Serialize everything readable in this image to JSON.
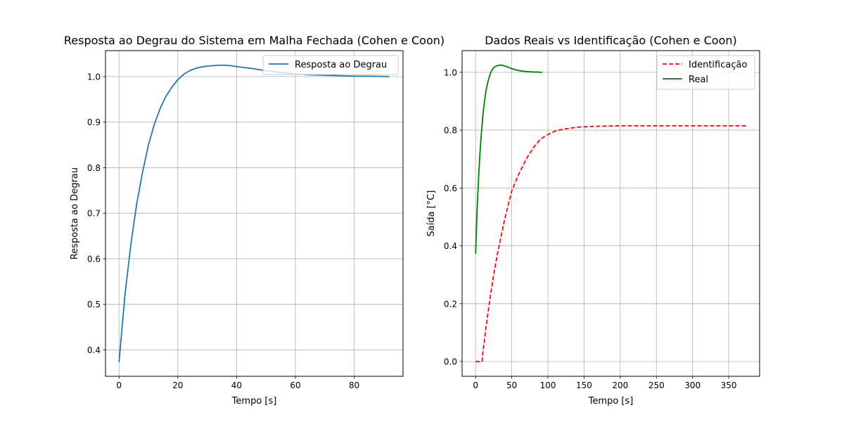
{
  "chart_data": [
    {
      "type": "line",
      "title": "Resposta ao Degrau do Sistema em Malha Fechada (Cohen e Coon)",
      "xlabel": "Tempo [s]",
      "ylabel": "Resposta ao Degrau",
      "xlim": [
        -4.6,
        96.6
      ],
      "ylim": [
        0.342,
        1.057
      ],
      "xticks": [
        0,
        20,
        40,
        60,
        80
      ],
      "xtick_labels": [
        "0",
        "20",
        "40",
        "60",
        "80"
      ],
      "yticks": [
        0.4,
        0.5,
        0.6,
        0.7,
        0.8,
        0.9,
        1.0
      ],
      "ytick_labels": [
        "0.4",
        "0.5",
        "0.6",
        "0.7",
        "0.8",
        "0.9",
        "1.0"
      ],
      "grid": true,
      "legend_position": "top-right",
      "series": [
        {
          "name": "Resposta ao Degrau",
          "color": "#1f77b4",
          "style": "solid",
          "x": [
            0,
            2,
            4,
            6,
            8,
            10,
            12,
            14,
            16,
            18,
            20,
            22,
            24,
            26,
            28,
            30,
            32,
            34,
            36,
            38,
            40,
            45,
            50,
            55,
            60,
            65,
            70,
            75,
            80,
            85,
            92
          ],
          "y": [
            0.373,
            0.52,
            0.63,
            0.72,
            0.79,
            0.85,
            0.895,
            0.93,
            0.957,
            0.977,
            0.993,
            1.005,
            1.013,
            1.018,
            1.021,
            1.023,
            1.024,
            1.025,
            1.025,
            1.024,
            1.022,
            1.018,
            1.013,
            1.009,
            1.006,
            1.004,
            1.003,
            1.002,
            1.001,
            1.001,
            1.0
          ]
        }
      ]
    },
    {
      "type": "line",
      "title": "Dados Reais vs Identificação (Cohen e Coon)",
      "xlabel": "Tempo [s]",
      "ylabel": "Saída [°C]",
      "xlim": [
        -18.7,
        392.7
      ],
      "ylim": [
        -0.051,
        1.075
      ],
      "xticks": [
        0,
        50,
        100,
        150,
        200,
        250,
        300,
        350
      ],
      "xtick_labels": [
        "0",
        "50",
        "100",
        "150",
        "200",
        "250",
        "300",
        "350"
      ],
      "yticks": [
        0.0,
        0.2,
        0.4,
        0.6,
        0.8,
        1.0
      ],
      "ytick_labels": [
        "0.0",
        "0.2",
        "0.4",
        "0.6",
        "0.8",
        "1.0"
      ],
      "grid": true,
      "legend_position": "top-right",
      "series": [
        {
          "name": "Identificação",
          "color": "#ff0000",
          "style": "dashed",
          "x": [
            0,
            5,
            9,
            10,
            15,
            20,
            25,
            30,
            35,
            40,
            45,
            50,
            60,
            70,
            80,
            90,
            100,
            110,
            120,
            140,
            160,
            180,
            200,
            250,
            300,
            350,
            375
          ],
          "y": [
            0.0,
            0.0,
            0.0,
            0.03,
            0.13,
            0.22,
            0.3,
            0.37,
            0.43,
            0.49,
            0.54,
            0.59,
            0.65,
            0.7,
            0.74,
            0.77,
            0.785,
            0.797,
            0.803,
            0.81,
            0.813,
            0.814,
            0.815,
            0.815,
            0.815,
            0.815,
            0.815
          ]
        },
        {
          "name": "Real",
          "color": "#008000",
          "style": "solid",
          "x": [
            0,
            2,
            4,
            6,
            8,
            10,
            12,
            14,
            16,
            18,
            20,
            22,
            24,
            26,
            28,
            30,
            32,
            34,
            36,
            38,
            40,
            45,
            50,
            55,
            60,
            65,
            70,
            75,
            80,
            85,
            92
          ],
          "y": [
            0.373,
            0.52,
            0.63,
            0.72,
            0.79,
            0.85,
            0.895,
            0.93,
            0.957,
            0.977,
            0.993,
            1.005,
            1.013,
            1.018,
            1.021,
            1.023,
            1.024,
            1.025,
            1.025,
            1.024,
            1.022,
            1.018,
            1.013,
            1.009,
            1.006,
            1.004,
            1.003,
            1.002,
            1.001,
            1.001,
            1.0
          ]
        }
      ]
    }
  ]
}
